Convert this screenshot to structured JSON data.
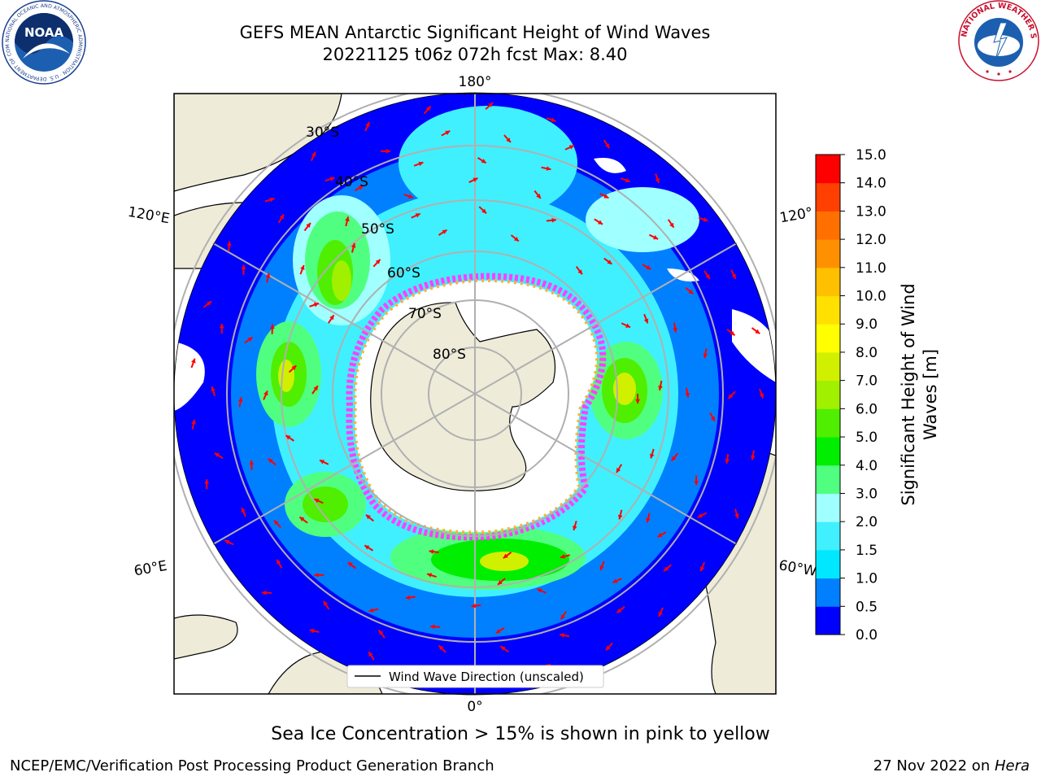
{
  "header": {
    "title": "GEFS MEAN Antarctic Significant Height of Wind Waves",
    "subtitle": "20221125 t06z 072h fcst   Max: 8.40"
  },
  "logos": {
    "noaa_text": "NOAA",
    "noaa_ring_text": "NATIONAL OCEANIC AND ATMOSPHERIC ADMINISTRATION · U.S. DEPARTMENT OF COMMERCE",
    "nws_ring_text": "NATIONAL WEATHER SERVICE"
  },
  "map": {
    "projection": "south-polar-stereographic",
    "longitude_labels": {
      "top": "180°",
      "bottom": "0°",
      "upper_left": "120°E",
      "upper_right": "120°",
      "lower_left": "60°E",
      "lower_right": "60°W"
    },
    "latitude_labels": [
      "30°S",
      "40°S",
      "50°S",
      "60°S",
      "70°S",
      "80°S"
    ],
    "legend": "Wind Wave Direction (unscaled)",
    "arrow_color": "#ff0000",
    "land_color": "#eeebd9",
    "grid_color": "#b0b0b0"
  },
  "colorbar": {
    "label_line1": "Significant Height of Wind",
    "label_line2": "Waves [m]",
    "ticks": [
      "0.0",
      "0.5",
      "1.0",
      "1.5",
      "2.0",
      "3.0",
      "4.0",
      "5.0",
      "6.0",
      "7.0",
      "8.0",
      "9.0",
      "10.0",
      "11.0",
      "12.0",
      "13.0",
      "14.0",
      "15.0"
    ],
    "colors": [
      "#0000ff",
      "#0080ff",
      "#00e8ff",
      "#40f0ff",
      "#a0ffff",
      "#50ff80",
      "#00ee00",
      "#50ee00",
      "#a0f000",
      "#d0f000",
      "#ffff00",
      "#ffe000",
      "#ffc000",
      "#ff9000",
      "#ff7000",
      "#ff4000",
      "#ff0000"
    ]
  },
  "footer": {
    "ice_note": "Sea Ice Concentration > 15% is shown in pink to yellow",
    "credit": "NCEP/EMC/Verification Post Processing Product Generation Branch",
    "date": "27 Nov 2022 on ",
    "machine": "Hera"
  }
}
